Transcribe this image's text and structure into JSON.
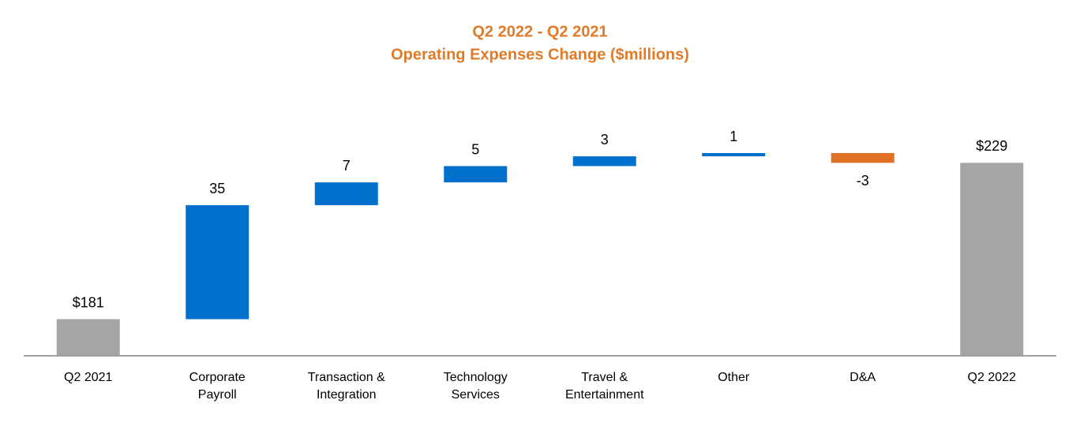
{
  "chart_data": {
    "type": "waterfall",
    "title": "Q2 2022 - Q2 2021",
    "subtitle": "Operating Expenses Change ($millions)",
    "categories": [
      "Q2 2021",
      "Corporate Payroll",
      "Transaction & Integration",
      "Technology Services",
      "Travel & Entertainment",
      "Other",
      "D&A",
      "Q2 2022"
    ],
    "measures": [
      "absolute",
      "relative",
      "relative",
      "relative",
      "relative",
      "relative",
      "relative",
      "total"
    ],
    "values": [
      181,
      35,
      7,
      5,
      3,
      1,
      -3,
      229
    ],
    "value_labels": [
      "$181",
      "35",
      "7",
      "5",
      "3",
      "1",
      "-3",
      "$229"
    ],
    "colors": {
      "total": "#a5a5a5",
      "increase": "#0070cc",
      "decrease": "#e07023"
    },
    "ylim": [
      170,
      240
    ]
  }
}
